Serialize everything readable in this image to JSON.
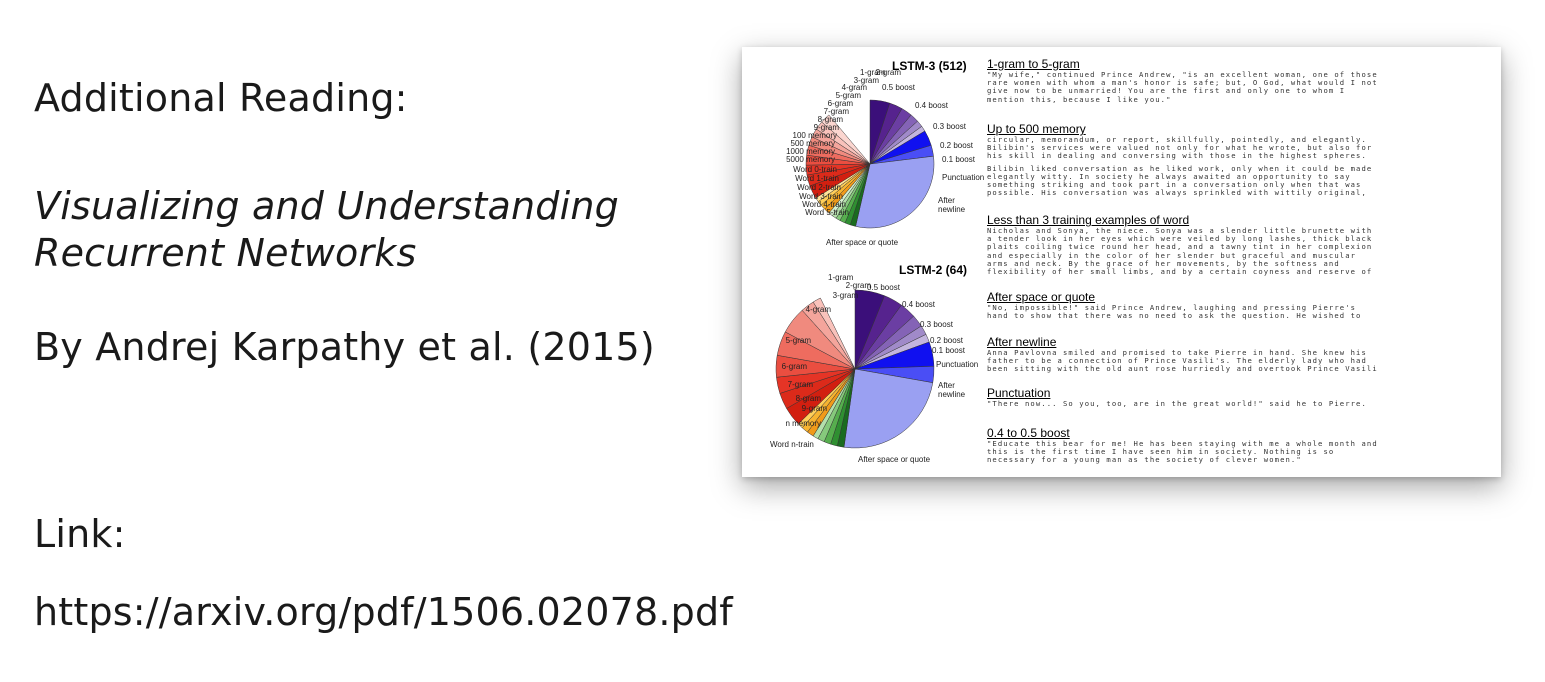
{
  "slide": {
    "heading": "Additional Reading:",
    "title_line1": "Visualizing and Understanding",
    "title_line2": "Recurrent Networks",
    "byline": "By Andrej Karpathy et al. (2015)",
    "link_label": "Link:",
    "url": "https://arxiv.org/pdf/1506.02078.pdf"
  },
  "figure": {
    "pie1": {
      "title": "LSTM-3 (512)",
      "labels": [
        "2-gram",
        "1-gram",
        "3-gram",
        "4-gram",
        "5-gram",
        "6-gram",
        "7-gram",
        "8-gram",
        "9-gram",
        "100 memory",
        "500 memory",
        "1000 memory",
        "5000 memory",
        "Word 0-train",
        "Word 1-train",
        "Word 2-train",
        "Word 3-train",
        "Word 4-train",
        "Word 5-train",
        "0.5 boost",
        "0.4 boost",
        "0.3 boost",
        "0.2 boost",
        "0.1 boost",
        "Punctuation",
        "After",
        "newline",
        "After space or quote"
      ]
    },
    "pie2": {
      "title": "LSTM-2 (64)",
      "labels": [
        "1-gram",
        "2-gram",
        "3-gram",
        "4-gram",
        "5-gram",
        "6-gram",
        "7-gram",
        "8-gram",
        "9-gram",
        "n memory",
        "Word n-train",
        "0.5 boost",
        "0.4 boost",
        "0.3 boost",
        "0.2 boost",
        "0.1 boost",
        "Punctuation",
        "After",
        "newline",
        "After space or quote"
      ]
    },
    "sections": [
      {
        "heading": "1-gram to 5-gram",
        "lines": [
          "\"My wife,\" continued Prince Andrew, \"is an excellent woman, one of those",
          "rare women with whom a man's honor is safe; but, O God, what would I not",
          "give now to be unmarried! You are the first and only one to whom I",
          "mention this, because I like you.\""
        ]
      },
      {
        "heading": "Up to 500 memory",
        "lines": [
          "circular, memorandum, or report, skillfully, pointedly, and elegantly.",
          "Bilibin's services were valued not only for what he wrote, but also for",
          "his skill in dealing and conversing with those in the highest spheres.",
          "",
          "Bilibin liked conversation as he liked work, only when it could be made",
          "elegantly witty. In society he always awaited an opportunity to say",
          "something striking and took part in a conversation only when that was",
          "possible. His conversation was always sprinkled with wittily original,"
        ]
      },
      {
        "heading": "Less than 3 training examples of word",
        "lines": [
          "Nicholas and Sonya, the niece. Sonya was a slender little brunette with",
          "a tender look in her eyes which were veiled by long lashes, thick black",
          "plaits coiling twice round her head, and a tawny tint in her complexion",
          "and especially in the color of her slender but graceful and muscular",
          "arms and neck. By the grace of her movements, by the softness and",
          "flexibility of her small limbs, and by a certain coyness and reserve of"
        ]
      },
      {
        "heading": "After space or quote",
        "lines": [
          "\"No, impossible!\" said Prince Andrew, laughing and pressing Pierre's",
          "hand to show that there was no need to ask the question. He wished to"
        ]
      },
      {
        "heading": "After newline",
        "lines": [
          "Anna Pavlovna smiled and promised to take Pierre in hand. She knew his",
          "father to be a connection of Prince Vasili's. The elderly lady who had",
          "been sitting with the old aunt rose hurriedly and overtook Prince Vasili"
        ]
      },
      {
        "heading": "Punctuation",
        "lines": [
          "\"There now... So you, too, are in the great world!\" said he to Pierre."
        ]
      },
      {
        "heading": "0.4 to 0.5 boost",
        "lines": [
          "\"Educate this bear for me! He has been staying with me a whole month and",
          "this is the first time I have seen him in society. Nothing is so",
          "necessary for a young man as the society of clever women.\""
        ]
      }
    ]
  }
}
